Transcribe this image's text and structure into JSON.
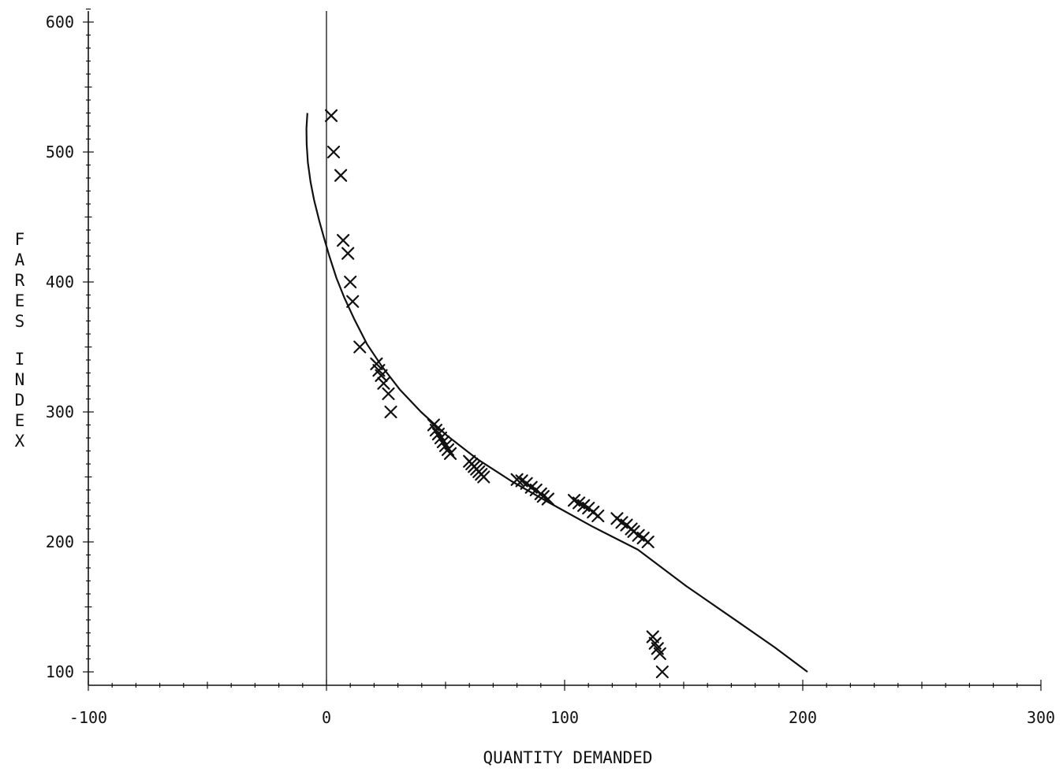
{
  "chart_data": {
    "type": "scatter",
    "xlabel": "QUANTITY DEMANDED",
    "ylabel": "FARES INDEX",
    "xlim": [
      -100,
      300
    ],
    "ylim": [
      95,
      610
    ],
    "x_ticks": [
      -100,
      0,
      100,
      200,
      300
    ],
    "x_tick_labels": [
      "-100",
      "0",
      "100",
      "200",
      "300"
    ],
    "y_ticks": [
      100,
      200,
      300,
      400,
      500,
      600
    ],
    "y_tick_labels": [
      "100",
      "200",
      "300",
      "400",
      "500",
      "600"
    ],
    "grid": false,
    "zero_line_x": 0,
    "series": [
      {
        "marker": "x",
        "points": [
          [
            2,
            528
          ],
          [
            3,
            500
          ],
          [
            6,
            482
          ],
          [
            7,
            432
          ],
          [
            9,
            422
          ],
          [
            10,
            400
          ],
          [
            11,
            385
          ],
          [
            14,
            350
          ],
          [
            21,
            337
          ],
          [
            22,
            332
          ],
          [
            23,
            328
          ],
          [
            24,
            322
          ],
          [
            26,
            314
          ],
          [
            27,
            300
          ],
          [
            45,
            290
          ],
          [
            46,
            286
          ],
          [
            47,
            283
          ],
          [
            48,
            280
          ],
          [
            49,
            277
          ],
          [
            50,
            274
          ],
          [
            51,
            271
          ],
          [
            52,
            268
          ],
          [
            60,
            262
          ],
          [
            61,
            260
          ],
          [
            62,
            258
          ],
          [
            63,
            256
          ],
          [
            64,
            254
          ],
          [
            65,
            252
          ],
          [
            66,
            250
          ],
          [
            80,
            248
          ],
          [
            82,
            247
          ],
          [
            84,
            245
          ],
          [
            86,
            242
          ],
          [
            88,
            240
          ],
          [
            90,
            237
          ],
          [
            91,
            235
          ],
          [
            93,
            233
          ],
          [
            104,
            232
          ],
          [
            106,
            230
          ],
          [
            108,
            228
          ],
          [
            110,
            226
          ],
          [
            112,
            223
          ],
          [
            114,
            220
          ],
          [
            122,
            218
          ],
          [
            124,
            215
          ],
          [
            126,
            213
          ],
          [
            128,
            210
          ],
          [
            129,
            208
          ],
          [
            131,
            205
          ],
          [
            133,
            203
          ],
          [
            135,
            200
          ],
          [
            137,
            127
          ],
          [
            138,
            122
          ],
          [
            139,
            118
          ],
          [
            140,
            114
          ],
          [
            141,
            100
          ]
        ]
      },
      {
        "type": "line",
        "points": [
          [
            -8,
            530
          ],
          [
            -8.4,
            518
          ],
          [
            -8.3,
            506
          ],
          [
            -7.8,
            492
          ],
          [
            -6.7,
            477
          ],
          [
            -5.2,
            463
          ],
          [
            -3.0,
            447
          ],
          [
            -1.2,
            435
          ],
          [
            1.2,
            420
          ],
          [
            4.2,
            403
          ],
          [
            7.5,
            388
          ],
          [
            11.8,
            371
          ],
          [
            17.1,
            352
          ],
          [
            23.3,
            335
          ],
          [
            30.9,
            317
          ],
          [
            39.7,
            300
          ],
          [
            50.5,
            282
          ],
          [
            63.1,
            264
          ],
          [
            77.5,
            247
          ],
          [
            93.7,
            230
          ],
          [
            111.5,
            212
          ],
          [
            130.8,
            194
          ],
          [
            151.1,
            166
          ],
          [
            173.2,
            138
          ],
          [
            188.1,
            119
          ],
          [
            202,
            100
          ]
        ]
      }
    ]
  }
}
